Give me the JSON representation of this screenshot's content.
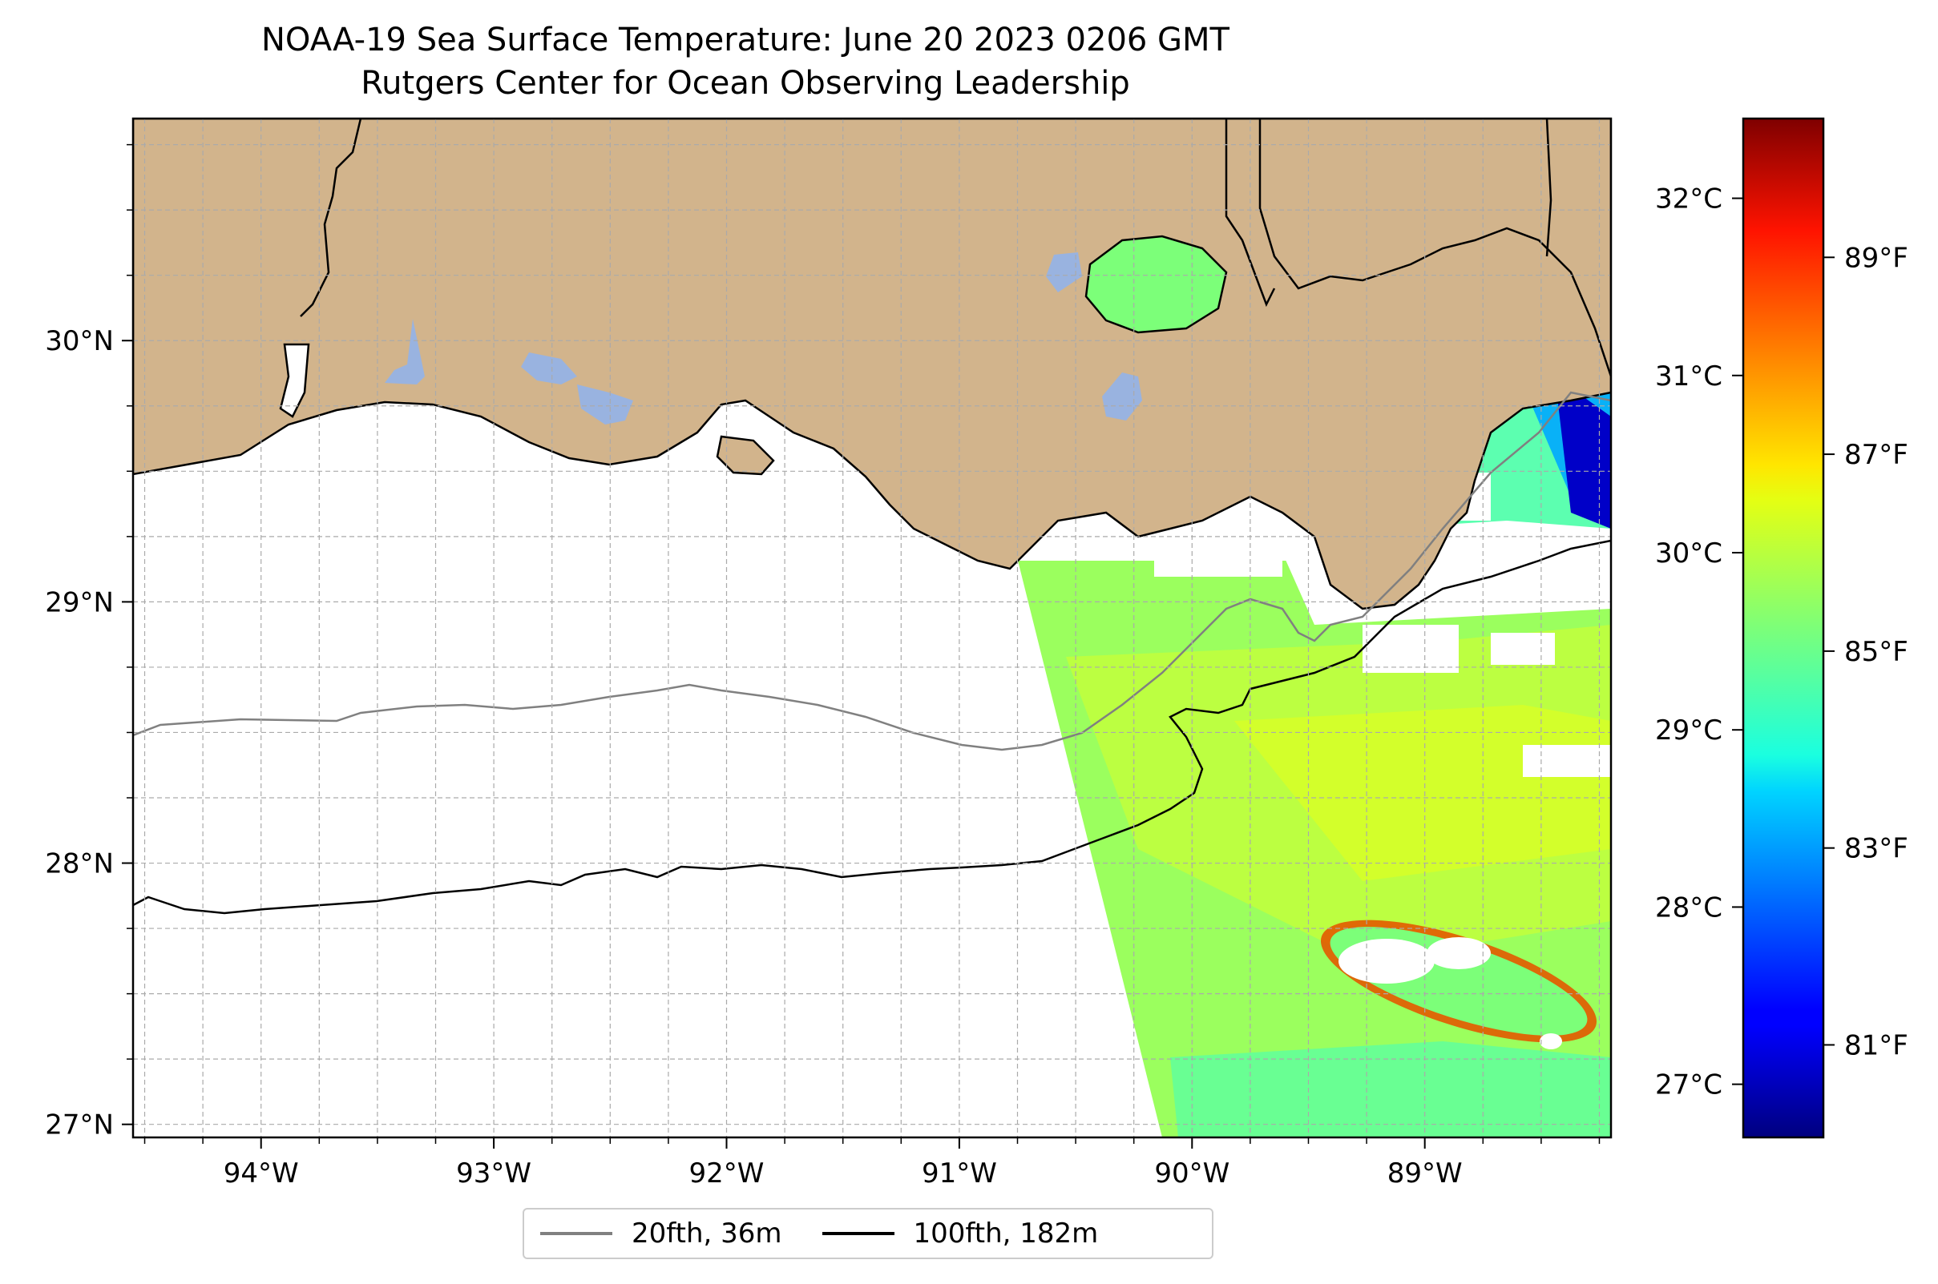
{
  "title": {
    "line1": "NOAA-19 Sea Surface Temperature: June 20 2023 0206 GMT",
    "line2": "Rutgers Center for Ocean Observing Leadership"
  },
  "chart_data": {
    "type": "heatmap",
    "map": {
      "lon_range": [
        -94.55,
        -88.2
      ],
      "lat_range": [
        26.95,
        30.85
      ],
      "x_ticks": [
        {
          "value": -94,
          "label": "94°W"
        },
        {
          "value": -93,
          "label": "93°W"
        },
        {
          "value": -92,
          "label": "92°W"
        },
        {
          "value": -91,
          "label": "91°W"
        },
        {
          "value": -90,
          "label": "90°W"
        },
        {
          "value": -89,
          "label": "89°W"
        }
      ],
      "y_ticks": [
        {
          "value": 27,
          "label": "27°N"
        },
        {
          "value": 28,
          "label": "28°N"
        },
        {
          "value": 29,
          "label": "29°N"
        },
        {
          "value": 30,
          "label": "30°N"
        }
      ],
      "grid": true,
      "land_color": "#D2B48C",
      "lake_color": "#99B3E0"
    },
    "colorbar": {
      "colormap": "jet",
      "range_c": [
        26.7,
        32.45
      ],
      "celsius_ticks": [
        {
          "value": 27,
          "label": "27°C"
        },
        {
          "value": 28,
          "label": "28°C"
        },
        {
          "value": 29,
          "label": "29°C"
        },
        {
          "value": 30,
          "label": "30°C"
        },
        {
          "value": 31,
          "label": "31°C"
        },
        {
          "value": 32,
          "label": "32°C"
        }
      ],
      "fahrenheit_ticks": [
        {
          "value": 81,
          "label": "81°F"
        },
        {
          "value": 83,
          "label": "83°F"
        },
        {
          "value": 85,
          "label": "85°F"
        },
        {
          "value": 87,
          "label": "87°F"
        },
        {
          "value": 89,
          "label": "89°F"
        }
      ]
    },
    "legend": {
      "placement": "bottom-center",
      "entries": [
        {
          "label": "20fth, 36m",
          "color": "#808080"
        },
        {
          "label": "100fth, 182m",
          "color": "#000000"
        }
      ]
    }
  }
}
